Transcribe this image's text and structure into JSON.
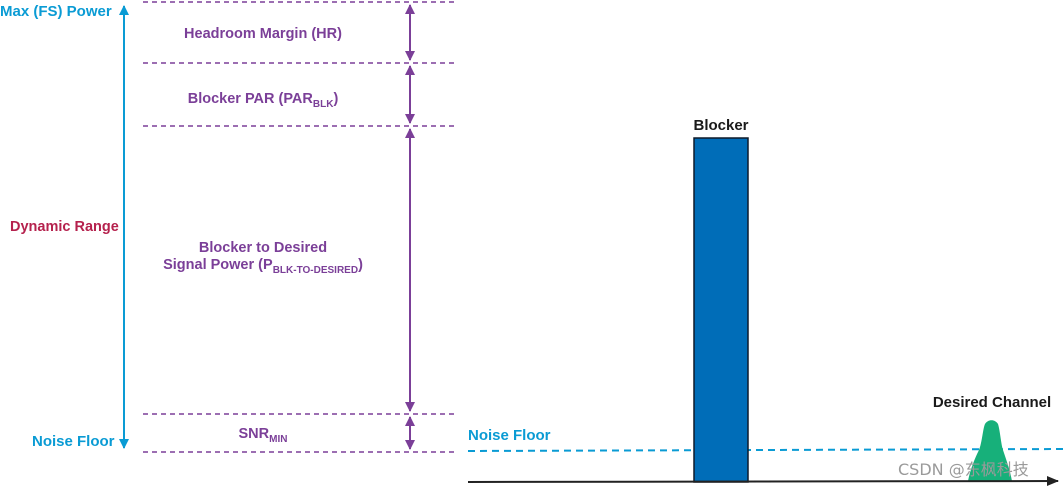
{
  "left_axis": {
    "max_label": "Max (FS) Power",
    "range_label": "Dynamic Range",
    "floor_label": "Noise Floor"
  },
  "segments": {
    "headroom": "Headroom Margin (HR)",
    "blocker_par_main": "Blocker PAR (PAR",
    "blocker_par_sub": "BLK",
    "blocker_par_end": ")",
    "b2d_line1": "Blocker to Desired",
    "b2d_line2_main": "Signal Power (P",
    "b2d_line2_sub": "BLK-TO-DESIRED",
    "b2d_line2_end": ")",
    "snr_main": "SNR",
    "snr_sub": "MIN"
  },
  "spectrum": {
    "blocker_label": "Blocker",
    "desired_label": "Desired Channel",
    "noise_floor_label": "Noise Floor"
  },
  "watermark": "CSDN @东枫科技",
  "colors": {
    "cyan": "#0a9bd4",
    "purple": "#7b3f98",
    "crimson": "#b5214d",
    "blocker_blue": "#006db8",
    "green": "#17b07a"
  }
}
